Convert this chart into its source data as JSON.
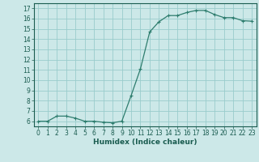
{
  "x": [
    0,
    1,
    2,
    3,
    4,
    5,
    6,
    7,
    8,
    9,
    10,
    11,
    12,
    13,
    14,
    15,
    16,
    17,
    18,
    19,
    20,
    21,
    22,
    23
  ],
  "y": [
    6.0,
    6.0,
    6.5,
    6.5,
    6.3,
    6.0,
    6.0,
    5.9,
    5.85,
    6.0,
    8.5,
    11.1,
    14.7,
    15.7,
    16.3,
    16.3,
    16.6,
    16.8,
    16.8,
    16.4,
    16.1,
    16.1,
    15.8,
    15.75
  ],
  "line_color": "#2e7d6e",
  "marker": "+",
  "marker_size": 3,
  "bg_color": "#cce8e8",
  "grid_color": "#99cccc",
  "xlabel": "Humidex (Indice chaleur)",
  "xlim": [
    -0.5,
    23.5
  ],
  "ylim": [
    5.5,
    17.5
  ],
  "yticks": [
    6,
    7,
    8,
    9,
    10,
    11,
    12,
    13,
    14,
    15,
    16,
    17
  ],
  "xticks": [
    0,
    1,
    2,
    3,
    4,
    5,
    6,
    7,
    8,
    9,
    10,
    11,
    12,
    13,
    14,
    15,
    16,
    17,
    18,
    19,
    20,
    21,
    22,
    23
  ],
  "tick_color": "#1a5c50",
  "label_color": "#1a5c50",
  "axis_color": "#1a5c50",
  "tick_fontsize": 5.5,
  "xlabel_fontsize": 6.5
}
